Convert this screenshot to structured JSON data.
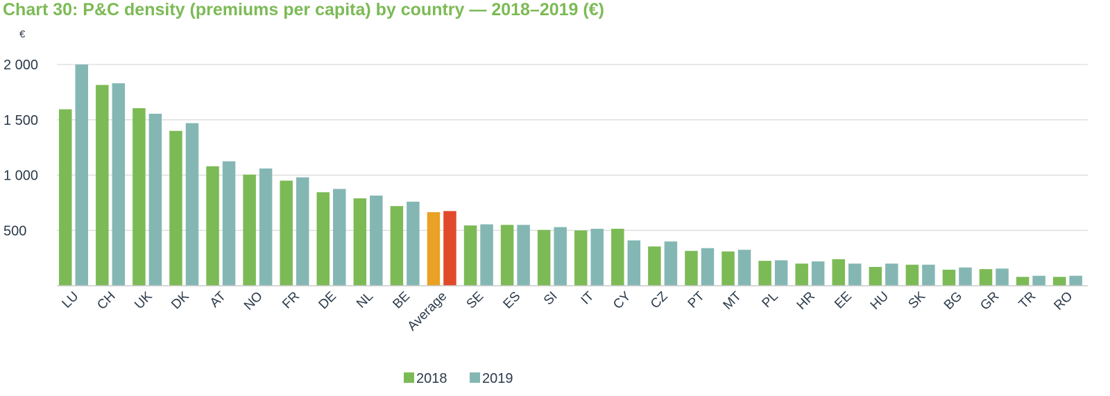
{
  "chart_data": {
    "type": "bar",
    "title": "Chart 30: P&C density (premiums per capita) by country — 2018–2019 (€)",
    "ylabel": "€",
    "xlabel": "",
    "ylim": [
      0,
      2000
    ],
    "yticks": [
      500,
      1000,
      1500,
      2000
    ],
    "ytick_labels": [
      "500",
      "1 000",
      "1 500",
      "2 000"
    ],
    "grid": true,
    "legend_position": "bottom-center",
    "categories": [
      "LU",
      "CH",
      "UK",
      "DK",
      "AT",
      "NO",
      "FR",
      "DE",
      "NL",
      "BE",
      "Average",
      "SE",
      "ES",
      "SI",
      "IT",
      "CY",
      "CZ",
      "PT",
      "MT",
      "PL",
      "HR",
      "EE",
      "HU",
      "SK",
      "BG",
      "GR",
      "TR",
      "RO"
    ],
    "series": [
      {
        "name": "2018",
        "color": "#7cba56",
        "values": [
          1595,
          1815,
          1605,
          1400,
          1080,
          1005,
          950,
          845,
          790,
          720,
          665,
          545,
          550,
          505,
          500,
          515,
          355,
          315,
          310,
          225,
          200,
          240,
          170,
          190,
          145,
          150,
          80,
          80
        ]
      },
      {
        "name": "2019",
        "color": "#84b7b4",
        "values": [
          2000,
          1830,
          1555,
          1470,
          1125,
          1060,
          980,
          875,
          815,
          760,
          675,
          555,
          550,
          530,
          515,
          410,
          400,
          340,
          325,
          230,
          220,
          200,
          200,
          190,
          165,
          155,
          90,
          90
        ]
      }
    ],
    "highlight": {
      "category": "Average",
      "colors": [
        "#eaa124",
        "#e04a2b"
      ]
    }
  }
}
